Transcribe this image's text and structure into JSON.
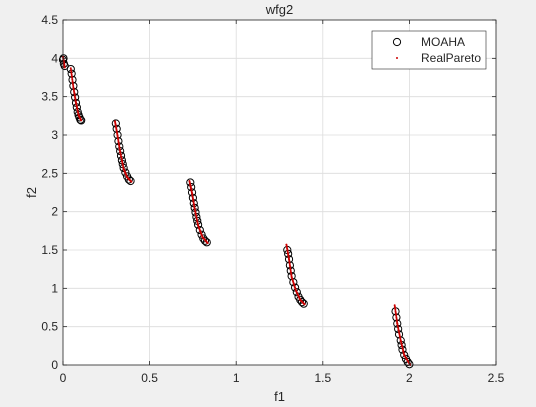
{
  "chart_data": {
    "type": "scatter",
    "title": "wfg2",
    "xlabel": "f1",
    "ylabel": "f2",
    "xlim": [
      0,
      2.5
    ],
    "ylim": [
      0,
      4.5
    ],
    "xticks": [
      0,
      0.5,
      1,
      1.5,
      2,
      2.5
    ],
    "xtick_labels": [
      "0",
      "0.5",
      "1",
      "1.5",
      "2",
      "2.5"
    ],
    "yticks": [
      0,
      0.5,
      1,
      1.5,
      2,
      2.5,
      3,
      3.5,
      4,
      4.5
    ],
    "ytick_labels": [
      "0",
      "0.5",
      "1",
      "1.5",
      "2",
      "2.5",
      "3",
      "3.5",
      "4",
      "4.5"
    ],
    "grid": true,
    "legend_position": "top-right",
    "series": [
      {
        "name": "MOAHA",
        "marker": "circle-open",
        "color": "#000000",
        "points": [
          [
            0.0,
            3.98
          ],
          [
            0.005,
            3.93
          ],
          [
            0.01,
            3.9
          ],
          [
            0.003,
            4.0
          ],
          [
            0.045,
            3.86
          ],
          [
            0.05,
            3.8
          ],
          [
            0.055,
            3.72
          ],
          [
            0.06,
            3.64
          ],
          [
            0.065,
            3.56
          ],
          [
            0.07,
            3.49
          ],
          [
            0.075,
            3.42
          ],
          [
            0.08,
            3.36
          ],
          [
            0.085,
            3.3
          ],
          [
            0.09,
            3.26
          ],
          [
            0.095,
            3.23
          ],
          [
            0.1,
            3.2
          ],
          [
            0.105,
            3.19
          ],
          [
            0.305,
            3.15
          ],
          [
            0.31,
            3.08
          ],
          [
            0.315,
            3.0
          ],
          [
            0.32,
            2.92
          ],
          [
            0.325,
            2.85
          ],
          [
            0.33,
            2.79
          ],
          [
            0.335,
            2.73
          ],
          [
            0.34,
            2.67
          ],
          [
            0.345,
            2.62
          ],
          [
            0.35,
            2.57
          ],
          [
            0.36,
            2.51
          ],
          [
            0.37,
            2.46
          ],
          [
            0.38,
            2.42
          ],
          [
            0.39,
            2.4
          ],
          [
            0.735,
            2.38
          ],
          [
            0.74,
            2.32
          ],
          [
            0.745,
            2.25
          ],
          [
            0.75,
            2.18
          ],
          [
            0.755,
            2.11
          ],
          [
            0.76,
            2.05
          ],
          [
            0.765,
            1.99
          ],
          [
            0.77,
            1.93
          ],
          [
            0.775,
            1.88
          ],
          [
            0.78,
            1.83
          ],
          [
            0.79,
            1.76
          ],
          [
            0.8,
            1.7
          ],
          [
            0.81,
            1.65
          ],
          [
            0.82,
            1.62
          ],
          [
            0.83,
            1.6
          ],
          [
            1.295,
            1.5
          ],
          [
            1.3,
            1.45
          ],
          [
            1.305,
            1.38
          ],
          [
            1.31,
            1.3
          ],
          [
            1.315,
            1.23
          ],
          [
            1.32,
            1.16
          ],
          [
            1.33,
            1.08
          ],
          [
            1.34,
            1.01
          ],
          [
            1.35,
            0.95
          ],
          [
            1.36,
            0.89
          ],
          [
            1.37,
            0.85
          ],
          [
            1.38,
            0.82
          ],
          [
            1.39,
            0.8
          ],
          [
            1.92,
            0.7
          ],
          [
            1.925,
            0.62
          ],
          [
            1.93,
            0.54
          ],
          [
            1.935,
            0.47
          ],
          [
            1.94,
            0.4
          ],
          [
            1.95,
            0.32
          ],
          [
            1.955,
            0.26
          ],
          [
            1.96,
            0.2
          ],
          [
            1.97,
            0.13
          ],
          [
            1.98,
            0.08
          ],
          [
            1.99,
            0.04
          ],
          [
            2.0,
            0.01
          ]
        ]
      },
      {
        "name": "RealPareto",
        "marker": "dot",
        "color": "#cc0000",
        "segments": [
          [
            [
              0.0,
              4.02
            ],
            [
              0.01,
              3.88
            ]
          ],
          [
            [
              0.045,
              3.87
            ],
            [
              0.06,
              3.62
            ],
            [
              0.075,
              3.42
            ],
            [
              0.09,
              3.26
            ],
            [
              0.105,
              3.19
            ]
          ],
          [
            [
              0.3,
              3.18
            ],
            [
              0.315,
              2.99
            ],
            [
              0.33,
              2.78
            ],
            [
              0.35,
              2.56
            ],
            [
              0.37,
              2.45
            ],
            [
              0.395,
              2.39
            ]
          ],
          [
            [
              0.73,
              2.4
            ],
            [
              0.745,
              2.24
            ],
            [
              0.76,
              2.04
            ],
            [
              0.78,
              1.82
            ],
            [
              0.805,
              1.67
            ],
            [
              0.835,
              1.59
            ]
          ],
          [
            [
              1.29,
              1.57
            ],
            [
              1.305,
              1.38
            ],
            [
              1.32,
              1.15
            ],
            [
              1.345,
              0.97
            ],
            [
              1.37,
              0.85
            ],
            [
              1.395,
              0.79
            ]
          ],
          [
            [
              1.915,
              0.78
            ],
            [
              1.93,
              0.54
            ],
            [
              1.95,
              0.32
            ],
            [
              1.97,
              0.13
            ],
            [
              2.005,
              0.0
            ]
          ]
        ]
      }
    ]
  }
}
